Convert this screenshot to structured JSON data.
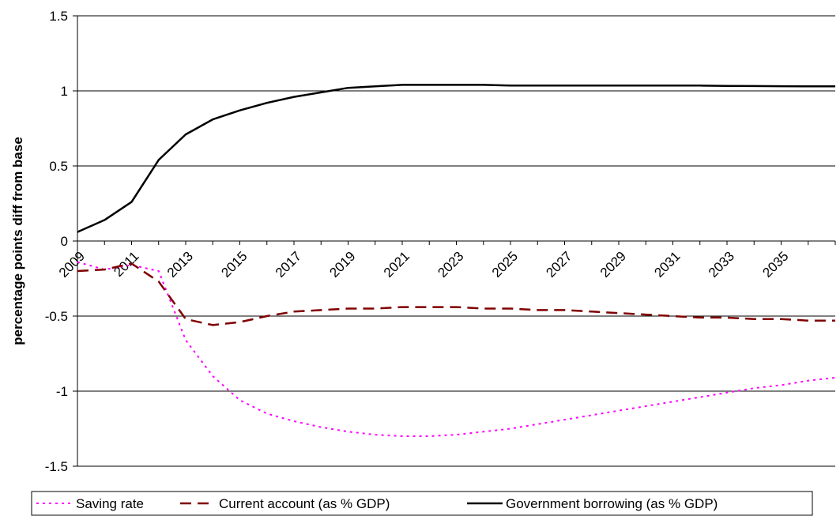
{
  "chart_data": {
    "type": "line",
    "title": "",
    "xlabel": "",
    "ylabel": "percentage points diff from base",
    "ylim": [
      -1.5,
      1.5
    ],
    "y_ticks": [
      1.5,
      1,
      0.5,
      0,
      -0.5,
      -1,
      -1.5
    ],
    "y_tick_labels": [
      "1.5",
      "1",
      "0.5",
      "0",
      "-0.5",
      "-1",
      "-1.5"
    ],
    "x": [
      2009,
      2010,
      2011,
      2012,
      2013,
      2014,
      2015,
      2016,
      2017,
      2018,
      2019,
      2020,
      2021,
      2022,
      2023,
      2024,
      2025,
      2026,
      2027,
      2028,
      2029,
      2030,
      2031,
      2032,
      2033,
      2034,
      2035,
      2036,
      2037
    ],
    "x_tick_labels": [
      "2009",
      "2011",
      "2013",
      "2015",
      "2017",
      "2019",
      "2021",
      "2023",
      "2025",
      "2027",
      "2029",
      "2031",
      "2033",
      "2035"
    ],
    "grid": "horizontal major gridlines",
    "legend_position": "bottom",
    "series": [
      {
        "name": "Saving rate",
        "color": "#ff00ff",
        "style": "dotted",
        "values": [
          -0.14,
          -0.19,
          -0.16,
          -0.2,
          -0.66,
          -0.9,
          -1.06,
          -1.15,
          -1.2,
          -1.24,
          -1.27,
          -1.29,
          -1.3,
          -1.3,
          -1.29,
          -1.27,
          -1.25,
          -1.22,
          -1.19,
          -1.16,
          -1.13,
          -1.1,
          -1.07,
          -1.04,
          -1.01,
          -0.98,
          -0.96,
          -0.93,
          -0.91
        ]
      },
      {
        "name": "Current account (as % GDP)",
        "color": "#800000",
        "style": "dashed",
        "values": [
          -0.2,
          -0.19,
          -0.15,
          -0.27,
          -0.52,
          -0.56,
          -0.54,
          -0.5,
          -0.47,
          -0.46,
          -0.45,
          -0.45,
          -0.44,
          -0.44,
          -0.44,
          -0.45,
          -0.45,
          -0.46,
          -0.46,
          -0.47,
          -0.48,
          -0.49,
          -0.5,
          -0.51,
          -0.51,
          -0.52,
          -0.52,
          -0.53,
          -0.53
        ]
      },
      {
        "name": "Government borrowing (as % GDP)",
        "color": "#000000",
        "style": "solid",
        "values": [
          0.06,
          0.14,
          0.26,
          0.54,
          0.71,
          0.81,
          0.87,
          0.92,
          0.96,
          0.99,
          1.02,
          1.03,
          1.04,
          1.04,
          1.04,
          1.04,
          1.035,
          1.035,
          1.035,
          1.035,
          1.035,
          1.035,
          1.035,
          1.035,
          1.033,
          1.032,
          1.031,
          1.03,
          1.03
        ]
      }
    ]
  }
}
